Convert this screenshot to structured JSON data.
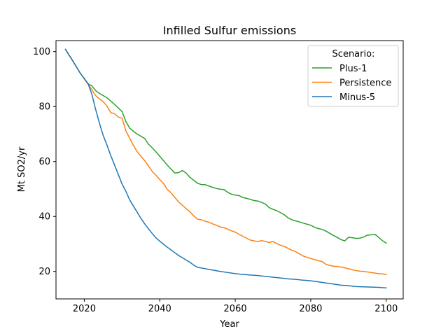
{
  "chart_data": {
    "type": "line",
    "title": "Infilled Sulfur emissions",
    "xlabel": "Year",
    "ylabel": "Mt SO2/yr",
    "xlim": [
      2012.5,
      2104.5
    ],
    "ylim": [
      10,
      104
    ],
    "xticks": [
      2020,
      2040,
      2060,
      2080,
      2100
    ],
    "yticks": [
      20,
      40,
      60,
      80,
      100
    ],
    "grid": false,
    "legend": {
      "title": "Scenario:",
      "placement": "top-right"
    },
    "series": [
      {
        "name": "Plus-1",
        "color": "#2ca02c",
        "x": [
          2015,
          2017,
          2019,
          2021,
          2022,
          2023,
          2024,
          2025,
          2026,
          2027,
          2028,
          2029,
          2030,
          2031,
          2032,
          2033,
          2034,
          2035,
          2036,
          2037,
          2038,
          2039,
          2040,
          2041,
          2042,
          2043,
          2044,
          2045,
          2046,
          2047,
          2048,
          2049,
          2050,
          2051,
          2052,
          2053,
          2054,
          2055,
          2056,
          2057,
          2058,
          2059,
          2060,
          2061,
          2062,
          2063,
          2064,
          2065,
          2066,
          2067,
          2068,
          2069,
          2070,
          2071,
          2072,
          2073,
          2074,
          2075,
          2076,
          2077,
          2078,
          2079,
          2080,
          2081,
          2082,
          2083,
          2084,
          2085,
          2086,
          2087,
          2088,
          2089,
          2090,
          2091,
          2092,
          2093,
          2094,
          2095,
          2096,
          2097,
          2098,
          2099,
          2100
        ],
        "values": [
          100.8,
          96.5,
          92,
          88.3,
          87.5,
          85.8,
          84.8,
          84,
          83.2,
          82,
          80.8,
          79.5,
          78.2,
          74.6,
          72.2,
          71,
          70,
          69.2,
          68.4,
          66.3,
          65,
          63.5,
          61.9,
          60.3,
          58.7,
          57.2,
          55.8,
          56,
          56.7,
          55.8,
          54.2,
          53.2,
          52.1,
          51.6,
          51.6,
          51.1,
          50.6,
          50.2,
          49.9,
          49.8,
          48.8,
          48.1,
          47.8,
          47.6,
          46.9,
          46.6,
          46.2,
          45.8,
          45.6,
          45.1,
          44.5,
          43.2,
          42.6,
          42.1,
          41.4,
          40.6,
          39.5,
          38.8,
          38.4,
          38,
          37.6,
          37.2,
          36.8,
          36.1,
          35.6,
          35.3,
          34.7,
          33.9,
          33.1,
          32.4,
          31.6,
          31.1,
          32.4,
          32.3,
          32,
          32.1,
          32.5,
          33.2,
          33.3,
          33.5,
          32.4,
          31.2,
          30.3
        ]
      },
      {
        "name": "Persistence",
        "color": "#ff7f0e",
        "x": [
          2015,
          2017,
          2019,
          2021,
          2022,
          2023,
          2024,
          2025,
          2026,
          2027,
          2028,
          2029,
          2030,
          2031,
          2032,
          2033,
          2034,
          2035,
          2036,
          2037,
          2038,
          2039,
          2040,
          2041,
          2042,
          2043,
          2044,
          2045,
          2046,
          2047,
          2048,
          2049,
          2050,
          2051,
          2052,
          2053,
          2054,
          2055,
          2056,
          2057,
          2058,
          2059,
          2060,
          2061,
          2062,
          2063,
          2064,
          2065,
          2066,
          2067,
          2068,
          2069,
          2070,
          2071,
          2072,
          2073,
          2074,
          2075,
          2076,
          2077,
          2078,
          2079,
          2080,
          2081,
          2082,
          2083,
          2084,
          2085,
          2086,
          2087,
          2088,
          2089,
          2090,
          2091,
          2092,
          2093,
          2094,
          2095,
          2096,
          2097,
          2098,
          2099,
          2100
        ],
        "values": [
          100.8,
          96.5,
          92,
          88.1,
          86.1,
          84,
          82.8,
          81.8,
          80.2,
          77.8,
          77.4,
          76.2,
          75.8,
          71.2,
          68.5,
          65.9,
          63.6,
          61.9,
          60.3,
          58.4,
          56.4,
          55,
          53.4,
          52,
          49.8,
          48.6,
          46.9,
          45.3,
          44.1,
          42.8,
          41.7,
          40.2,
          39,
          38.8,
          38.3,
          37.9,
          37.3,
          36.8,
          36.2,
          35.9,
          35.4,
          34.8,
          34.3,
          33.5,
          32.8,
          32.1,
          31.4,
          31.1,
          30.9,
          31.2,
          30.9,
          30.5,
          30.9,
          30.1,
          29.5,
          29.1,
          28.4,
          27.7,
          27.2,
          26.4,
          25.6,
          25.1,
          24.7,
          24.3,
          23.9,
          23.6,
          22.6,
          22.2,
          21.9,
          21.8,
          21.6,
          21.3,
          21,
          20.6,
          20.3,
          20.1,
          20,
          19.8,
          19.6,
          19.4,
          19.2,
          19.1,
          18.9
        ]
      },
      {
        "name": "Minus-5",
        "color": "#1f77b4",
        "x": [
          2015,
          2017,
          2019,
          2021,
          2022,
          2023,
          2024,
          2025,
          2026,
          2027,
          2028,
          2029,
          2030,
          2031,
          2032,
          2033,
          2034,
          2035,
          2036,
          2037,
          2038,
          2039,
          2040,
          2041,
          2042,
          2043,
          2044,
          2045,
          2046,
          2047,
          2048,
          2049,
          2050,
          2052,
          2054,
          2056,
          2058,
          2060,
          2062,
          2064,
          2066,
          2068,
          2070,
          2072,
          2074,
          2076,
          2078,
          2080,
          2082,
          2084,
          2086,
          2088,
          2090,
          2092,
          2094,
          2096,
          2098,
          2100
        ],
        "values": [
          100.8,
          96.5,
          92,
          88.3,
          84.5,
          79,
          74,
          69.5,
          66,
          62.2,
          58.8,
          55.3,
          51.8,
          49.2,
          46.1,
          43.8,
          41.6,
          39.3,
          37.3,
          35.5,
          33.8,
          32.2,
          31,
          29.9,
          28.8,
          27.8,
          26.8,
          25.8,
          25,
          24.1,
          23.3,
          22.3,
          21.5,
          21,
          20.5,
          20,
          19.6,
          19.2,
          18.9,
          18.7,
          18.5,
          18.2,
          17.9,
          17.6,
          17.3,
          17.1,
          16.8,
          16.6,
          16.2,
          15.8,
          15.4,
          15,
          14.8,
          14.5,
          14.4,
          14.3,
          14.2,
          14
        ]
      }
    ]
  }
}
